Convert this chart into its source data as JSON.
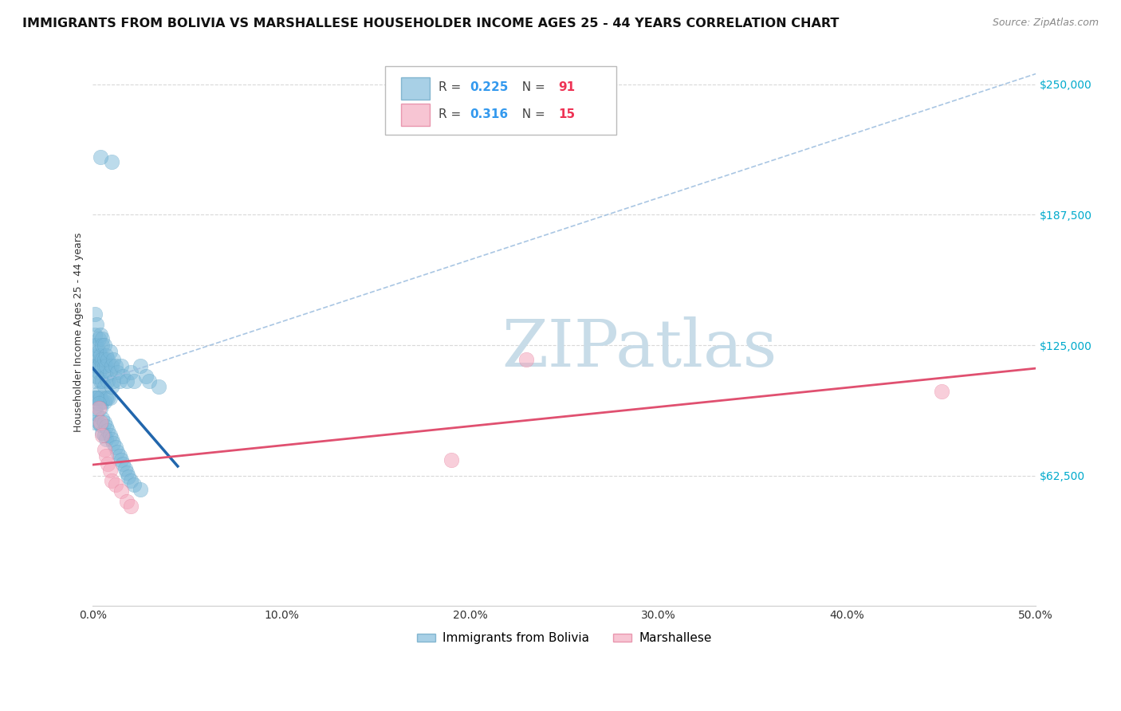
{
  "title": "IMMIGRANTS FROM BOLIVIA VS MARSHALLESE HOUSEHOLDER INCOME AGES 25 - 44 YEARS CORRELATION CHART",
  "source": "Source: ZipAtlas.com",
  "ylabel": "Householder Income Ages 25 - 44 years",
  "xlim": [
    0.0,
    0.5
  ],
  "ylim": [
    0,
    262500
  ],
  "yticks": [
    0,
    62500,
    125000,
    187500,
    250000
  ],
  "ytick_labels": [
    "",
    "$62,500",
    "$125,000",
    "$187,500",
    "$250,000"
  ],
  "xticks": [
    0.0,
    0.1,
    0.2,
    0.3,
    0.4,
    0.5
  ],
  "bolivia_R": "0.225",
  "bolivia_N": "91",
  "marshallese_R": "0.316",
  "marshallese_N": "15",
  "bolivia_color": "#7ab8d9",
  "bolivia_edge_color": "#5a9dbf",
  "bolivia_line_color": "#2166ac",
  "marshallese_color": "#f4a6bc",
  "marshallese_edge_color": "#e07090",
  "marshallese_line_color": "#e05070",
  "dashed_line_color": "#a0c0e0",
  "background_color": "#ffffff",
  "grid_color": "#d0d0d0",
  "title_fontsize": 11.5,
  "source_fontsize": 9,
  "axis_label_fontsize": 9,
  "tick_fontsize": 10,
  "bolivia_x": [
    0.001,
    0.001,
    0.001,
    0.001,
    0.001,
    0.001,
    0.001,
    0.002,
    0.002,
    0.002,
    0.002,
    0.002,
    0.002,
    0.003,
    0.003,
    0.003,
    0.003,
    0.003,
    0.004,
    0.004,
    0.004,
    0.004,
    0.004,
    0.005,
    0.005,
    0.005,
    0.005,
    0.005,
    0.005,
    0.006,
    0.006,
    0.006,
    0.006,
    0.006,
    0.007,
    0.007,
    0.007,
    0.007,
    0.008,
    0.008,
    0.008,
    0.009,
    0.009,
    0.009,
    0.01,
    0.01,
    0.011,
    0.011,
    0.012,
    0.013,
    0.014,
    0.015,
    0.016,
    0.018,
    0.02,
    0.022,
    0.025,
    0.028,
    0.03,
    0.035,
    0.001,
    0.001,
    0.002,
    0.002,
    0.003,
    0.003,
    0.004,
    0.004,
    0.005,
    0.005,
    0.006,
    0.006,
    0.007,
    0.007,
    0.008,
    0.009,
    0.01,
    0.011,
    0.012,
    0.013,
    0.014,
    0.015,
    0.016,
    0.017,
    0.018,
    0.019,
    0.02,
    0.022,
    0.025,
    0.01,
    0.004
  ],
  "bolivia_y": [
    125000,
    118000,
    108000,
    100000,
    115000,
    130000,
    140000,
    135000,
    120000,
    110000,
    100000,
    115000,
    125000,
    122000,
    112000,
    102000,
    115000,
    128000,
    130000,
    118000,
    108000,
    100000,
    120000,
    128000,
    118000,
    108000,
    98000,
    115000,
    125000,
    125000,
    115000,
    105000,
    98000,
    118000,
    120000,
    110000,
    100000,
    115000,
    118000,
    108000,
    100000,
    122000,
    112000,
    100000,
    115000,
    105000,
    118000,
    108000,
    115000,
    112000,
    108000,
    115000,
    110000,
    108000,
    112000,
    108000,
    115000,
    110000,
    108000,
    105000,
    95000,
    88000,
    100000,
    92000,
    97000,
    88000,
    95000,
    87000,
    90000,
    83000,
    88000,
    82000,
    86000,
    80000,
    84000,
    82000,
    80000,
    78000,
    76000,
    74000,
    72000,
    70000,
    68000,
    66000,
    64000,
    62000,
    60000,
    58000,
    56000,
    213000,
    215000
  ],
  "marshallese_x": [
    0.003,
    0.004,
    0.005,
    0.006,
    0.007,
    0.008,
    0.009,
    0.01,
    0.012,
    0.015,
    0.018,
    0.02,
    0.19,
    0.23,
    0.45
  ],
  "marshallese_y": [
    95000,
    88000,
    82000,
    75000,
    72000,
    68000,
    65000,
    60000,
    58000,
    55000,
    50000,
    48000,
    70000,
    118000,
    103000
  ],
  "watermark_text": "ZIPatlas",
  "watermark_color": "#c8dce8",
  "legend_box_color": "#ffffff",
  "legend_border_color": "#cccccc"
}
